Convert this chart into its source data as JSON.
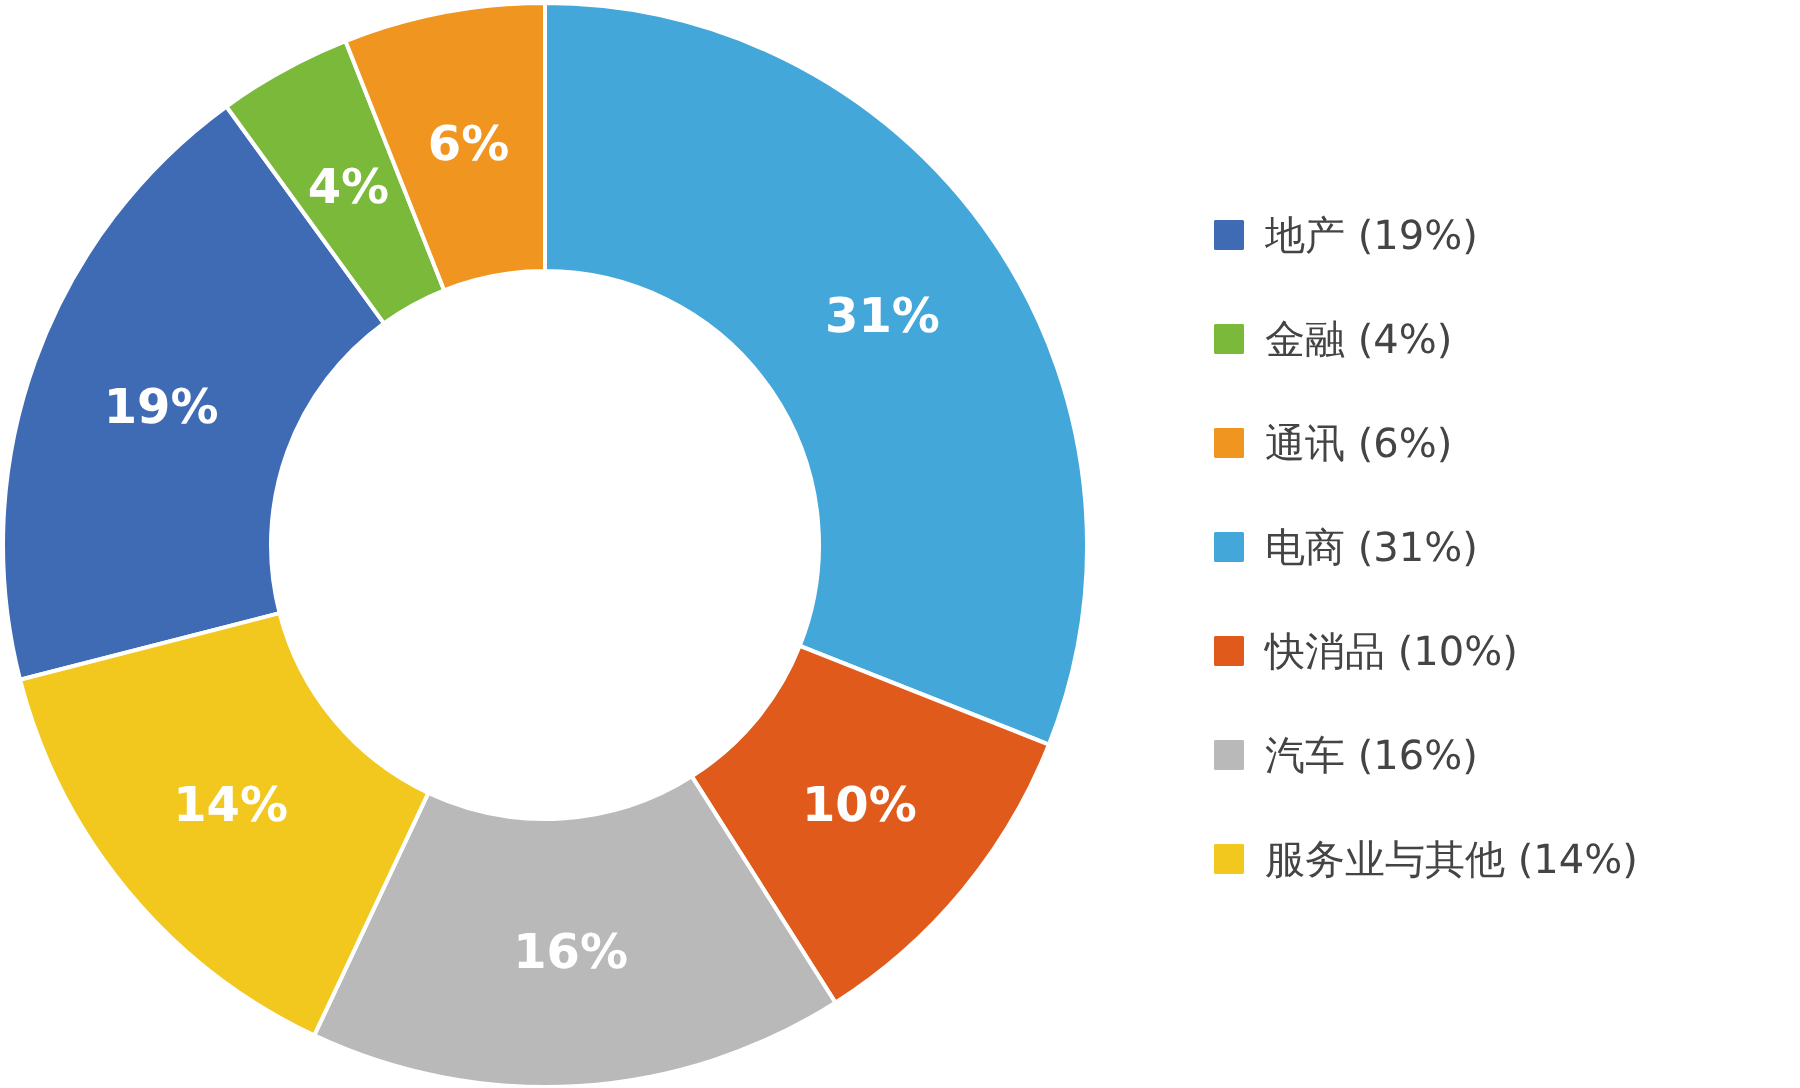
{
  "chart_data": {
    "type": "donut",
    "categories": [
      "地产 (19%)",
      "金融 (4%)",
      "通讯 (6%)",
      "电商 (31%)",
      "快消品 (10%)",
      "汽车 (16%)",
      "服务业与其他 (14%)"
    ],
    "values": [
      19,
      4,
      6,
      31,
      10,
      16,
      14
    ],
    "value_labels": [
      "19%",
      "4%",
      "6%",
      "31%",
      "10%",
      "16%",
      "14%"
    ],
    "colors": [
      "#3f6bb5",
      "#7ab93a",
      "#f0951f",
      "#44a7d9",
      "#e05a1c",
      "#b9b9b9",
      "#f2c81f"
    ],
    "legend": "right"
  }
}
